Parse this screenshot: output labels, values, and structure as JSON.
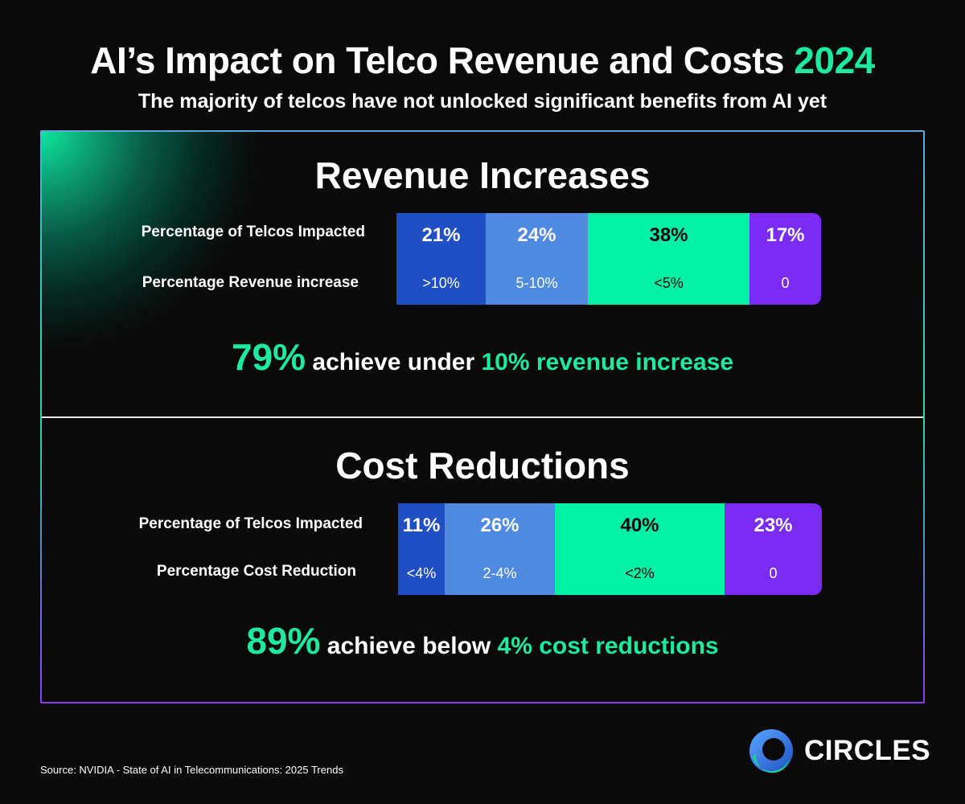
{
  "header": {
    "title": "AI’s Impact on Telco Revenue and Costs",
    "title_year": "2024",
    "subtitle": "The majority of telcos have not unlocked significant benefits from AI yet"
  },
  "colors": {
    "accent": "#1de9a0",
    "segment_colors": [
      "#1f4fc2",
      "#5089e0",
      "#00f0a4",
      "#7a2cf5"
    ]
  },
  "chart_data": [
    {
      "type": "bar",
      "stacked": true,
      "orientation": "horizontal",
      "title": "Revenue Increases",
      "row_labels": [
        "Percentage of Telcos Impacted",
        "Percentage Revenue increase"
      ],
      "categories": [
        ">10%",
        "5-10%",
        "<5%",
        "0"
      ],
      "values": [
        21,
        24,
        38,
        17
      ],
      "value_labels": [
        "21%",
        "24%",
        "38%",
        "17%"
      ],
      "summary": {
        "big": "79%",
        "mid": " achieve under ",
        "highlight": "10% revenue increase"
      }
    },
    {
      "type": "bar",
      "stacked": true,
      "orientation": "horizontal",
      "title": "Cost Reductions",
      "row_labels": [
        "Percentage of Telcos Impacted",
        "Percentage Cost Reduction"
      ],
      "categories": [
        "<4%",
        "2-4%",
        "<2%",
        "0"
      ],
      "values": [
        11,
        26,
        40,
        23
      ],
      "value_labels": [
        "11%",
        "26%",
        "40%",
        "23%"
      ],
      "summary": {
        "big": "89%",
        "mid": " achieve below ",
        "highlight": "4% cost reductions"
      }
    }
  ],
  "footer": {
    "source": "Source: NVIDIA - State of AI in Telecommunications: 2025 Trends",
    "logo_text": "CIRCLES"
  }
}
